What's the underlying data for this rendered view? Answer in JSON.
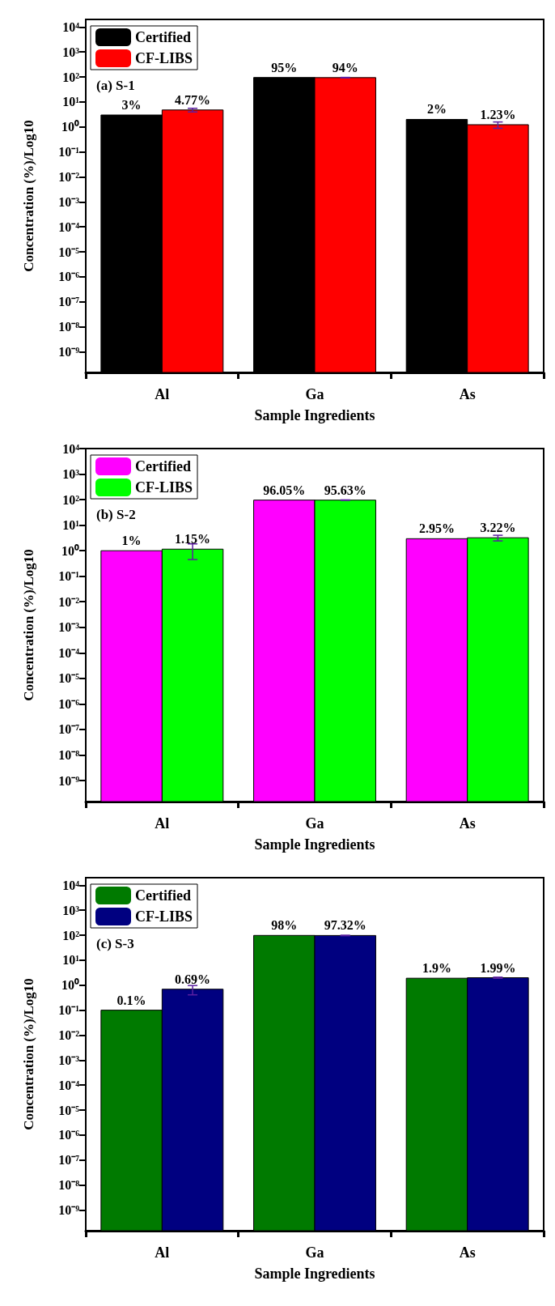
{
  "chart_data": [
    {
      "type": "bar",
      "title": "(a) S-1",
      "xlabel": "Sample Ingredients",
      "ylabel": "Concentration (%)/Log10",
      "categories": [
        "Al",
        "Ga",
        "As"
      ],
      "log": true,
      "ylim": [
        1.5e-10,
        20000.0
      ],
      "yticks": [
        {
          "value": 1e-09,
          "label": "10⁻⁹"
        },
        {
          "value": 1e-08,
          "label": "10⁻⁸"
        },
        {
          "value": 1e-07,
          "label": "10⁻⁷"
        },
        {
          "value": 1e-06,
          "label": "10⁻⁶"
        },
        {
          "value": 1e-05,
          "label": "10⁻⁵"
        },
        {
          "value": 0.0001,
          "label": "10⁻⁴"
        },
        {
          "value": 0.001,
          "label": "10⁻³"
        },
        {
          "value": 0.01,
          "label": "10⁻²"
        },
        {
          "value": 0.1,
          "label": "10⁻¹"
        },
        {
          "value": 1,
          "label": "10⁰"
        },
        {
          "value": 10,
          "label": "10¹"
        },
        {
          "value": 100,
          "label": "10²"
        },
        {
          "value": 1000,
          "label": "10³"
        },
        {
          "value": 10000,
          "label": "10⁴"
        }
      ],
      "legend": "top left",
      "grid": false,
      "series": [
        {
          "name": "Certified",
          "color": "#000000",
          "values": [
            3,
            95,
            2
          ],
          "value_labels": [
            "3%",
            "95%",
            "2%"
          ]
        },
        {
          "name": "CF-LIBS",
          "color": "#ff0000",
          "values": [
            4.77,
            94,
            1.23
          ],
          "errors": [
            0.8,
            2,
            0.35
          ],
          "value_labels": [
            "4.77%",
            "94%",
            "1.23%"
          ]
        }
      ]
    },
    {
      "type": "bar",
      "title": "(b) S-2",
      "xlabel": "Sample Ingredients",
      "ylabel": "Concentration (%)/Log10",
      "categories": [
        "Al",
        "Ga",
        "As"
      ],
      "log": true,
      "ylim": [
        1.5e-10,
        10000.0
      ],
      "yticks": [
        {
          "value": 1e-09,
          "label": "10⁻⁹"
        },
        {
          "value": 1e-08,
          "label": "10⁻⁸"
        },
        {
          "value": 1e-07,
          "label": "10⁻⁷"
        },
        {
          "value": 1e-06,
          "label": "10⁻⁶"
        },
        {
          "value": 1e-05,
          "label": "10⁻⁵"
        },
        {
          "value": 0.0001,
          "label": "10⁻⁴"
        },
        {
          "value": 0.001,
          "label": "10⁻³"
        },
        {
          "value": 0.01,
          "label": "10⁻²"
        },
        {
          "value": 0.1,
          "label": "10⁻¹"
        },
        {
          "value": 1,
          "label": "10⁰"
        },
        {
          "value": 10,
          "label": "10¹"
        },
        {
          "value": 100,
          "label": "10²"
        },
        {
          "value": 1000,
          "label": "10³"
        },
        {
          "value": 10000,
          "label": "10⁴"
        }
      ],
      "legend": "top left",
      "grid": false,
      "series": [
        {
          "name": "Certified",
          "color": "#ff00ff",
          "values": [
            1,
            96.05,
            2.95
          ],
          "value_labels": [
            "1%",
            "96.05%",
            "2.95%"
          ]
        },
        {
          "name": "CF-LIBS",
          "color": "#00ff00",
          "values": [
            1.15,
            95.63,
            3.22
          ],
          "errors": [
            0.7,
            2,
            0.8
          ],
          "value_labels": [
            "1.15%",
            "95.63%",
            "3.22%"
          ]
        }
      ]
    },
    {
      "type": "bar",
      "title": "(c) S-3",
      "xlabel": "Sample Ingredients",
      "ylabel": "Concentration (%)/Log10",
      "categories": [
        "Al",
        "Ga",
        "As"
      ],
      "log": true,
      "ylim": [
        1.5e-10,
        20000.0
      ],
      "yticks": [
        {
          "value": 1e-09,
          "label": "10⁻⁹"
        },
        {
          "value": 1e-08,
          "label": "10⁻⁸"
        },
        {
          "value": 1e-07,
          "label": "10⁻⁷"
        },
        {
          "value": 1e-06,
          "label": "10⁻⁶"
        },
        {
          "value": 1e-05,
          "label": "10⁻⁵"
        },
        {
          "value": 0.0001,
          "label": "10⁻⁴"
        },
        {
          "value": 0.001,
          "label": "10⁻³"
        },
        {
          "value": 0.01,
          "label": "10⁻²"
        },
        {
          "value": 0.1,
          "label": "10⁻¹"
        },
        {
          "value": 1,
          "label": "10⁰"
        },
        {
          "value": 10,
          "label": "10¹"
        },
        {
          "value": 100,
          "label": "10²"
        },
        {
          "value": 1000,
          "label": "10³"
        },
        {
          "value": 10000,
          "label": "10⁴"
        }
      ],
      "legend": "top left",
      "grid": false,
      "series": [
        {
          "name": "Certified",
          "color": "#007a00",
          "values": [
            0.1,
            98,
            1.9
          ],
          "value_labels": [
            "0.1%",
            "98%",
            "1.9%"
          ]
        },
        {
          "name": "CF-LIBS",
          "color": "#000080",
          "values": [
            0.69,
            97.32,
            1.99
          ],
          "errors": [
            0.28,
            2,
            0.1
          ],
          "value_labels": [
            "0.69%",
            "97.32%",
            "1.99%"
          ]
        }
      ]
    }
  ]
}
